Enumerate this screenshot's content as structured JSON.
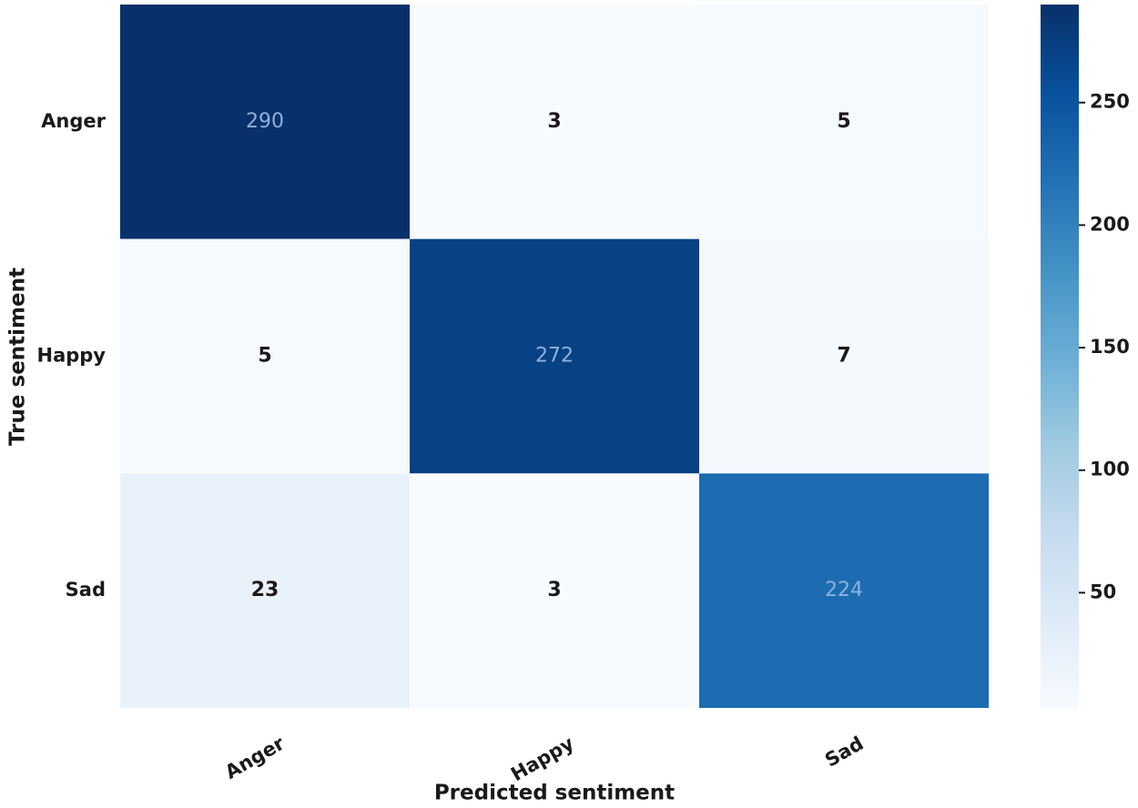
{
  "chart_data": {
    "type": "heatmap",
    "x_label": "Predicted sentiment",
    "y_label": "True sentiment",
    "x_categories": [
      "Anger",
      "Happy",
      "Sad"
    ],
    "y_categories": [
      "Anger",
      "Happy",
      "Sad"
    ],
    "values": [
      [
        290,
        3,
        5
      ],
      [
        5,
        272,
        7
      ],
      [
        23,
        3,
        224
      ]
    ],
    "colormap": "Blues",
    "zlim": [
      3,
      290
    ],
    "zticks": [
      50,
      100,
      150,
      200,
      250
    ]
  }
}
